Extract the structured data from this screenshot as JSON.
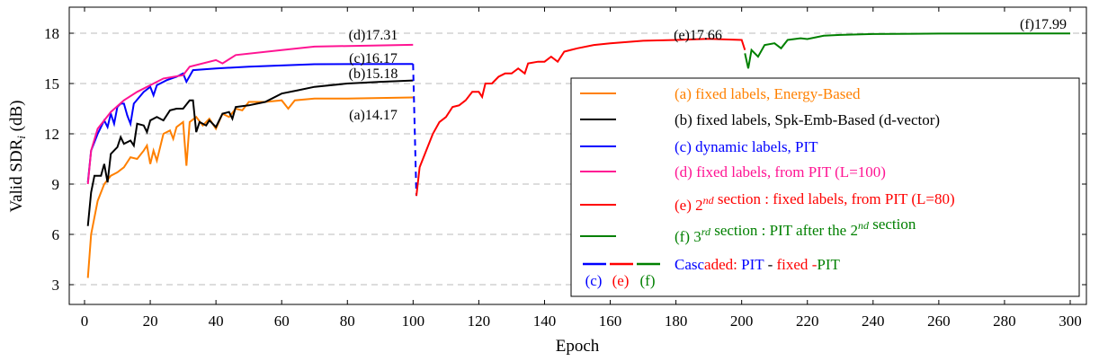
{
  "chart_data": {
    "type": "line",
    "xlabel": "Epoch",
    "ylabel": "Valid SDR",
    "ylabel_sub": "i",
    "ylabel_unit": "(dB)",
    "xlim": [
      -4,
      304
    ],
    "ylim": [
      1.3,
      19.7
    ],
    "xticks": [
      0,
      20,
      40,
      60,
      80,
      100,
      120,
      140,
      160,
      180,
      200,
      220,
      240,
      260,
      280,
      300
    ],
    "yticks": [
      3,
      6,
      9,
      12,
      15,
      18
    ],
    "grid": "horizontal dashed",
    "legend_position": "right",
    "series": [
      {
        "id": "a",
        "name": "(a) fixed labels, Energy-Based",
        "color": "#ff8000",
        "points": [
          [
            1,
            3.4
          ],
          [
            2,
            6
          ],
          [
            4,
            8
          ],
          [
            6,
            9
          ],
          [
            8,
            9.5
          ],
          [
            10,
            9.7
          ],
          [
            12,
            10
          ],
          [
            14,
            10.6
          ],
          [
            16,
            10.5
          ],
          [
            18,
            11.0
          ],
          [
            19,
            11.3
          ],
          [
            20,
            10.2
          ],
          [
            21,
            11.0
          ],
          [
            22,
            10.4
          ],
          [
            24,
            12.0
          ],
          [
            26,
            12.2
          ],
          [
            27,
            11.7
          ],
          [
            28,
            12.4
          ],
          [
            30,
            12.7
          ],
          [
            31,
            10.1
          ],
          [
            32,
            12.7
          ],
          [
            34,
            13.0
          ],
          [
            36,
            12.5
          ],
          [
            38,
            12.9
          ],
          [
            40,
            12.3
          ],
          [
            42,
            13.2
          ],
          [
            44,
            13.0
          ],
          [
            46,
            13.5
          ],
          [
            48,
            13.4
          ],
          [
            50,
            13.9
          ],
          [
            55,
            13.9
          ],
          [
            60,
            14.0
          ],
          [
            62,
            13.5
          ],
          [
            64,
            14.0
          ],
          [
            70,
            14.1
          ],
          [
            80,
            14.1
          ],
          [
            100,
            14.17
          ]
        ],
        "final_label": "(a)14.17"
      },
      {
        "id": "b",
        "name": "(b) fixed labels, Spk-Emb-Based (d-vector)",
        "color": "#000000",
        "points": [
          [
            1,
            6.5
          ],
          [
            2,
            8.5
          ],
          [
            3,
            9.5
          ],
          [
            5,
            9.5
          ],
          [
            6,
            10.2
          ],
          [
            7,
            9.1
          ],
          [
            8,
            10.8
          ],
          [
            10,
            11.2
          ],
          [
            11,
            11.8
          ],
          [
            12,
            11.4
          ],
          [
            14,
            11.6
          ],
          [
            15,
            11.3
          ],
          [
            16,
            12.6
          ],
          [
            18,
            12.5
          ],
          [
            19,
            12.1
          ],
          [
            20,
            12.8
          ],
          [
            22,
            13.0
          ],
          [
            24,
            12.8
          ],
          [
            26,
            13.4
          ],
          [
            28,
            13.5
          ],
          [
            30,
            13.5
          ],
          [
            32,
            14.0
          ],
          [
            33,
            14.0
          ],
          [
            34,
            12.1
          ],
          [
            35,
            12.7
          ],
          [
            37,
            12.5
          ],
          [
            38,
            12.8
          ],
          [
            40,
            12.4
          ],
          [
            42,
            13.2
          ],
          [
            44,
            13.3
          ],
          [
            45,
            12.9
          ],
          [
            46,
            13.6
          ],
          [
            50,
            13.7
          ],
          [
            55,
            13.9
          ],
          [
            60,
            14.4
          ],
          [
            65,
            14.6
          ],
          [
            70,
            14.8
          ],
          [
            80,
            15.0
          ],
          [
            90,
            15.1
          ],
          [
            100,
            15.18
          ]
        ],
        "final_label": "(b)15.18"
      },
      {
        "id": "c",
        "name": "(c) dynamic labels, PIT",
        "color": "#0000ff",
        "points": [
          [
            1,
            9.1
          ],
          [
            2,
            11.0
          ],
          [
            4,
            12.0
          ],
          [
            6,
            12.8
          ],
          [
            7,
            12.4
          ],
          [
            8,
            13.2
          ],
          [
            9,
            12.6
          ],
          [
            10,
            13.6
          ],
          [
            11,
            13.8
          ],
          [
            12,
            13.8
          ],
          [
            13,
            13.1
          ],
          [
            14,
            12.6
          ],
          [
            15,
            13.8
          ],
          [
            18,
            14.5
          ],
          [
            20,
            14.8
          ],
          [
            21,
            14.3
          ],
          [
            22,
            14.9
          ],
          [
            25,
            15.2
          ],
          [
            28,
            15.4
          ],
          [
            30,
            15.6
          ],
          [
            31,
            15.1
          ],
          [
            33,
            15.8
          ],
          [
            40,
            15.9
          ],
          [
            50,
            16.0
          ],
          [
            70,
            16.15
          ],
          [
            100,
            16.17
          ]
        ],
        "dashed_link": [
          [
            100,
            16.17
          ],
          [
            101,
            8.3
          ]
        ],
        "final_label": "(c)16.17"
      },
      {
        "id": "d",
        "name": "(d) fixed labels, from PIT (L=100)",
        "color": "#ff1493",
        "points": [
          [
            1,
            9.0
          ],
          [
            2,
            11.0
          ],
          [
            4,
            12.3
          ],
          [
            8,
            13.3
          ],
          [
            12,
            14.0
          ],
          [
            16,
            14.5
          ],
          [
            20,
            14.9
          ],
          [
            24,
            15.3
          ],
          [
            30,
            15.5
          ],
          [
            32,
            16.0
          ],
          [
            40,
            16.4
          ],
          [
            42,
            16.2
          ],
          [
            46,
            16.7
          ],
          [
            60,
            17.0
          ],
          [
            70,
            17.2
          ],
          [
            100,
            17.31
          ]
        ],
        "final_label": "(d)17.31"
      },
      {
        "id": "e",
        "name_prefix": "(e) 2",
        "name_sup": "nd",
        "name_suffix": " section : fixed labels, from PIT (L=80)",
        "color": "#ff0000",
        "points": [
          [
            101,
            8.3
          ],
          [
            102,
            10.0
          ],
          [
            104,
            11.0
          ],
          [
            106,
            12.0
          ],
          [
            108,
            12.7
          ],
          [
            110,
            13.0
          ],
          [
            112,
            13.6
          ],
          [
            114,
            13.7
          ],
          [
            116,
            14.0
          ],
          [
            118,
            14.5
          ],
          [
            120,
            14.5
          ],
          [
            121,
            14.2
          ],
          [
            122,
            15.0
          ],
          [
            124,
            15.0
          ],
          [
            126,
            15.4
          ],
          [
            128,
            15.6
          ],
          [
            130,
            15.6
          ],
          [
            132,
            15.9
          ],
          [
            134,
            15.6
          ],
          [
            135,
            16.2
          ],
          [
            138,
            16.3
          ],
          [
            140,
            16.3
          ],
          [
            142,
            16.6
          ],
          [
            144,
            16.3
          ],
          [
            146,
            16.9
          ],
          [
            150,
            17.1
          ],
          [
            155,
            17.3
          ],
          [
            160,
            17.4
          ],
          [
            170,
            17.55
          ],
          [
            180,
            17.6
          ],
          [
            190,
            17.66
          ],
          [
            200,
            17.6
          ],
          [
            201,
            17.0
          ]
        ],
        "final_label": "(e)17.66"
      },
      {
        "id": "f",
        "name_prefix": "(f) 3",
        "name_sup": "rd",
        "name_mid": " section : PIT after the 2",
        "name_sup2": "nd",
        "name_suffix": " section",
        "color": "#008000",
        "points": [
          [
            201,
            16.8
          ],
          [
            202,
            15.9
          ],
          [
            203,
            17.0
          ],
          [
            205,
            16.6
          ],
          [
            207,
            17.3
          ],
          [
            210,
            17.4
          ],
          [
            212,
            17.1
          ],
          [
            214,
            17.6
          ],
          [
            218,
            17.7
          ],
          [
            220,
            17.65
          ],
          [
            225,
            17.85
          ],
          [
            230,
            17.9
          ],
          [
            240,
            17.95
          ],
          [
            260,
            17.98
          ],
          [
            300,
            17.99
          ]
        ],
        "final_label": "(f)17.99"
      }
    ],
    "cascade_legend": {
      "labels": [
        "(c)",
        "(e)",
        "(f)"
      ],
      "text_parts": [
        "Casc",
        "aded: ",
        "PIT",
        " - ",
        "fixed",
        " -",
        "PIT"
      ]
    }
  }
}
